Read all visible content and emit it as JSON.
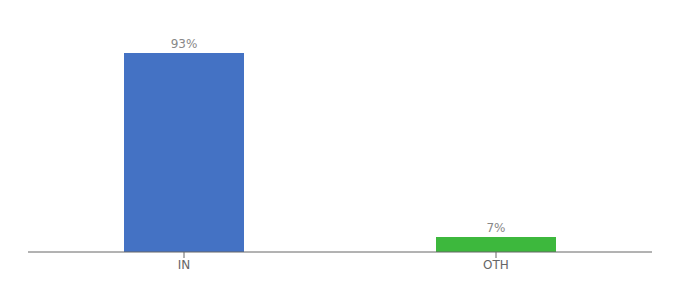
{
  "chart_data": {
    "type": "bar",
    "categories": [
      "IN",
      "OTH"
    ],
    "values": [
      93,
      7
    ],
    "colors": [
      "#4472c4",
      "#3db83d"
    ],
    "value_labels": [
      "93%",
      "7%"
    ],
    "data_labels": true,
    "ylim": [
      0,
      100
    ],
    "grid": false,
    "tick_labels": "x"
  }
}
